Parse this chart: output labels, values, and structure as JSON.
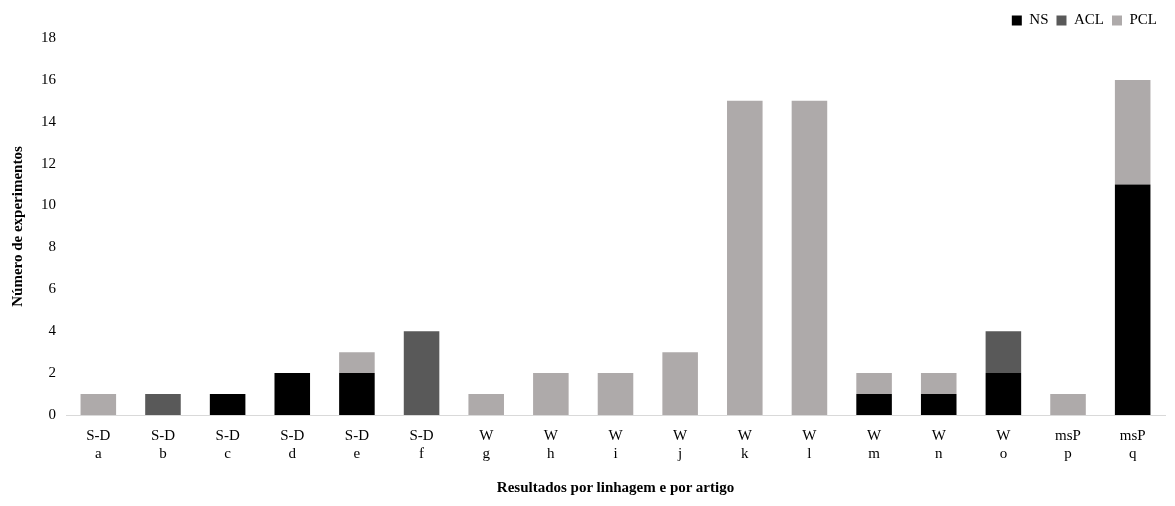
{
  "chart_data": {
    "type": "bar",
    "stacked": true,
    "xlabel": "Resultados por linhagem e por artigo",
    "ylabel": "Número de experimentos",
    "categories": [
      "S-D\na",
      "S-D\nb",
      "S-D\nc",
      "S-D\nd",
      "S-D\ne",
      "S-D\nf",
      "W\ng",
      "W\nh",
      "W\ni",
      "W\nj",
      "W\nk",
      "W\nl",
      "W\nm",
      "W\nn",
      "W\no",
      "msP\np",
      "msP\nq"
    ],
    "series": [
      {
        "name": "NS",
        "color": "#000000",
        "values": [
          0,
          0,
          1,
          2,
          2,
          0,
          0,
          0,
          0,
          0,
          0,
          0,
          1,
          1,
          2,
          0,
          11
        ]
      },
      {
        "name": "ACL",
        "color": "#595959",
        "values": [
          0,
          1,
          0,
          0,
          0,
          4,
          0,
          0,
          0,
          0,
          0,
          0,
          0,
          0,
          2,
          0,
          0
        ]
      },
      {
        "name": "PCL",
        "color": "#aeaaaa",
        "values": [
          1,
          0,
          0,
          0,
          1,
          0,
          1,
          2,
          2,
          3,
          15,
          15,
          1,
          1,
          0,
          1,
          5
        ]
      }
    ],
    "ylim": [
      0,
      18
    ],
    "yticks": [
      0,
      2,
      4,
      6,
      8,
      10,
      12,
      14,
      16,
      18
    ],
    "grid": false,
    "legend": "top right"
  }
}
